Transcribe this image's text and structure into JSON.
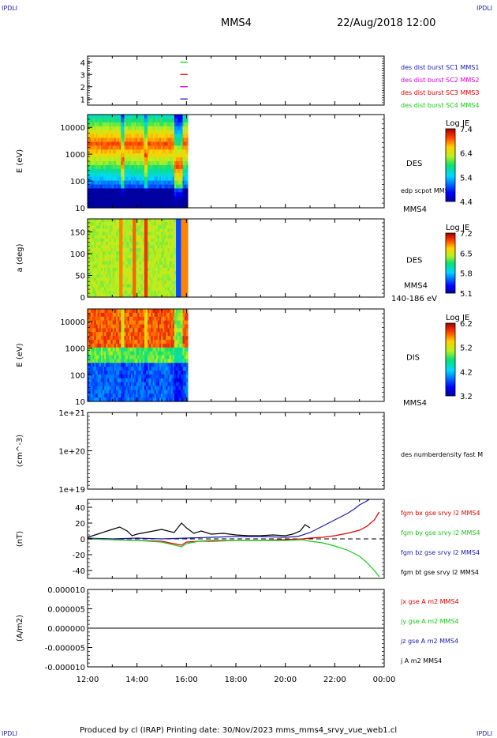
{
  "corners": {
    "tl": "IPDLI",
    "tr": "IPDLI",
    "bl": "IPDLI",
    "br": "IPDLI"
  },
  "header": {
    "spacecraft": "MMS4",
    "datetime": "22/Aug/2018 12:00"
  },
  "footer": {
    "text": "Produced by cl (IRAP)   Printing date: 30/Nov/2023   mms_mms4_srvy_vue_web1.cl"
  },
  "x_ticks": [
    "12:00",
    "14:00",
    "16:00",
    "18:00",
    "20:00",
    "22:00",
    "00:00"
  ],
  "colors": {
    "blue": "#1a1aa8",
    "red": "#e00000",
    "magenta": "#d200d2",
    "green": "#19c819",
    "black": "#000000"
  },
  "chart_data": [
    {
      "type": "line",
      "panel": "burst",
      "ylim": [
        0.5,
        4.5
      ],
      "yticks": [
        "1",
        "2",
        "3",
        "4"
      ],
      "legend": [
        {
          "label": "des dist burst SC1 MMS1",
          "color": "#1a1aa8"
        },
        {
          "label": "des dist burst SC2 MMS2",
          "color": "#d200d2"
        },
        {
          "label": "des dist burst SC3 MMS3",
          "color": "#e00000"
        },
        {
          "label": "des dist burst SC4 MMS4",
          "color": "#19c819"
        }
      ],
      "series": [
        {
          "color": "#19c819",
          "y": 4,
          "x": [
            15.75,
            16.05
          ]
        },
        {
          "color": "#e00000",
          "y": 3,
          "x": [
            15.75,
            16.05
          ]
        },
        {
          "color": "#d200d2",
          "y": 2,
          "x": [
            15.75,
            16.05
          ]
        },
        {
          "color": "#1a1aa8",
          "y": 1,
          "x": [
            15.75,
            16.05
          ]
        }
      ]
    },
    {
      "type": "heatmap",
      "panel": "des_energy",
      "ylabel": "E (eV)",
      "yscale": "log",
      "ylim": [
        10,
        30000
      ],
      "yticks": [
        "10",
        "100",
        "1000",
        "10000"
      ],
      "colorbar": {
        "title": "Log JE",
        "min": 4.4,
        "max": 7.4,
        "ticks": [
          "7.4",
          "6.4",
          "5.4",
          "4.4"
        ]
      },
      "label": "DES",
      "annotation": "edp scpot MMS4",
      "bottom_label": "MMS4",
      "data_x": [
        12.0,
        16.05
      ]
    },
    {
      "type": "heatmap",
      "panel": "des_pitch",
      "ylabel": "a (deg)",
      "ylim": [
        0,
        180
      ],
      "yticks": [
        "0",
        "50",
        "100",
        "150"
      ],
      "colorbar": {
        "title": "Log JE",
        "min": 5.1,
        "max": 7.2,
        "ticks": [
          "7.2",
          "6.5",
          "5.8",
          "5.1"
        ]
      },
      "label": "DES",
      "label2": "MMS4",
      "bottom_label": "140-186 eV",
      "data_x": [
        12.0,
        16.05
      ]
    },
    {
      "type": "heatmap",
      "panel": "dis_energy",
      "ylabel": "E (eV)",
      "yscale": "log",
      "ylim": [
        10,
        30000
      ],
      "yticks": [
        "10",
        "100",
        "1000",
        "10000"
      ],
      "colorbar": {
        "title": "Log JE",
        "min": 3.2,
        "max": 6.2,
        "ticks": [
          "6.2",
          "5.2",
          "4.2",
          "3.2"
        ]
      },
      "label": "DIS",
      "bottom_label": "MMS4",
      "data_x": [
        12.0,
        16.05
      ]
    },
    {
      "type": "line",
      "panel": "density",
      "ylabel": "(cm^-3)",
      "yscale": "log",
      "ylim": [
        1e+19,
        1e+21
      ],
      "yticks": [
        "1e+19",
        "1e+20",
        "1e+21"
      ],
      "legend": [
        {
          "label": "des numberdensity fast M",
          "color": "#000000"
        }
      ]
    },
    {
      "type": "line",
      "panel": "fgm",
      "ylabel": "(nT)",
      "ylim": [
        -50,
        50
      ],
      "yticks": [
        "-40",
        "-20",
        "0",
        "20",
        "40"
      ],
      "legend": [
        {
          "label": "fgm bx gse srvy l2 MMS4",
          "color": "#e00000"
        },
        {
          "label": "fgm by gse srvy l2 MMS4",
          "color": "#19c819"
        },
        {
          "label": "fgm bz gse srvy l2 MMS4",
          "color": "#1a1aa8"
        },
        {
          "label": "fgm bt gse srvy l2 MMS4",
          "color": "#000000"
        }
      ],
      "series": [
        {
          "name": "fgm bt gse srvy l2 MMS4",
          "color": "#000000",
          "x": [
            12.0,
            12.5,
            13.0,
            13.3,
            13.6,
            13.8,
            14.0,
            14.5,
            15.0,
            15.5,
            15.8,
            16.0,
            16.3,
            16.6,
            17.0,
            17.5,
            18.0,
            18.5,
            19.0,
            19.5,
            20.0,
            20.3,
            20.6,
            20.8,
            21.0
          ],
          "y": [
            2,
            7,
            12,
            15,
            10,
            4,
            6,
            9,
            12,
            8,
            20,
            14,
            7,
            10,
            6,
            7,
            5,
            4,
            4,
            5,
            4,
            6,
            10,
            18,
            14
          ]
        },
        {
          "name": "fgm bz gse srvy l2 MMS4",
          "color": "#1a1aa8",
          "x": [
            12.0,
            13.0,
            14.0,
            15.0,
            16.0,
            17.0,
            18.0,
            19.0,
            20.0,
            20.5,
            21.0,
            21.5,
            22.0,
            22.5,
            22.8,
            23.0,
            23.3,
            23.5
          ],
          "y": [
            1,
            0,
            1,
            0,
            1,
            2,
            3,
            3,
            2,
            3,
            8,
            16,
            24,
            32,
            38,
            43,
            48,
            52
          ]
        },
        {
          "name": "fgm bx gse srvy l2 MMS4",
          "color": "#e00000",
          "x": [
            12.0,
            13.0,
            14.0,
            15.0,
            15.8,
            16.0,
            16.5,
            17.0,
            18.0,
            19.0,
            20.0,
            20.7,
            21.0,
            21.5,
            22.0,
            22.5,
            23.0,
            23.3,
            23.6,
            23.8
          ],
          "y": [
            0,
            -1,
            -2,
            -3,
            -8,
            -4,
            -3,
            -3,
            -2,
            -2,
            -1,
            0,
            1,
            2,
            4,
            7,
            11,
            16,
            24,
            34
          ]
        },
        {
          "name": "fgm by gse srvy l2 MMS4",
          "color": "#19c819",
          "x": [
            12.0,
            13.0,
            14.0,
            15.0,
            15.8,
            16.0,
            16.5,
            17.0,
            18.0,
            19.0,
            20.0,
            20.7,
            21.0,
            21.5,
            22.0,
            22.5,
            23.0,
            23.3,
            23.6,
            23.8
          ],
          "y": [
            0,
            -1,
            -2,
            -4,
            -10,
            -6,
            -3,
            -2,
            -2,
            -2,
            -2,
            -1,
            -3,
            -5,
            -9,
            -14,
            -22,
            -30,
            -40,
            -48
          ]
        }
      ]
    },
    {
      "type": "line",
      "panel": "current",
      "ylabel": "(A/m2)",
      "ylim": [
        -1e-05,
        1e-05
      ],
      "yticks": [
        "-0.000010",
        "-0.000005",
        "0.000000",
        "0.000005",
        "0.000010"
      ],
      "legend": [
        {
          "label": "jx gse A m2 MMS4",
          "color": "#e00000"
        },
        {
          "label": "jy gse A m2 MMS4",
          "color": "#19c819"
        },
        {
          "label": "jz gse A m2 MMS4",
          "color": "#1a1aa8"
        },
        {
          "label": "j A m2 MMS4",
          "color": "#000000"
        }
      ],
      "series": [
        {
          "name": "j A m2 MMS4",
          "color": "#000000",
          "x": [
            12,
            24
          ],
          "y": [
            0,
            0
          ]
        }
      ]
    }
  ]
}
